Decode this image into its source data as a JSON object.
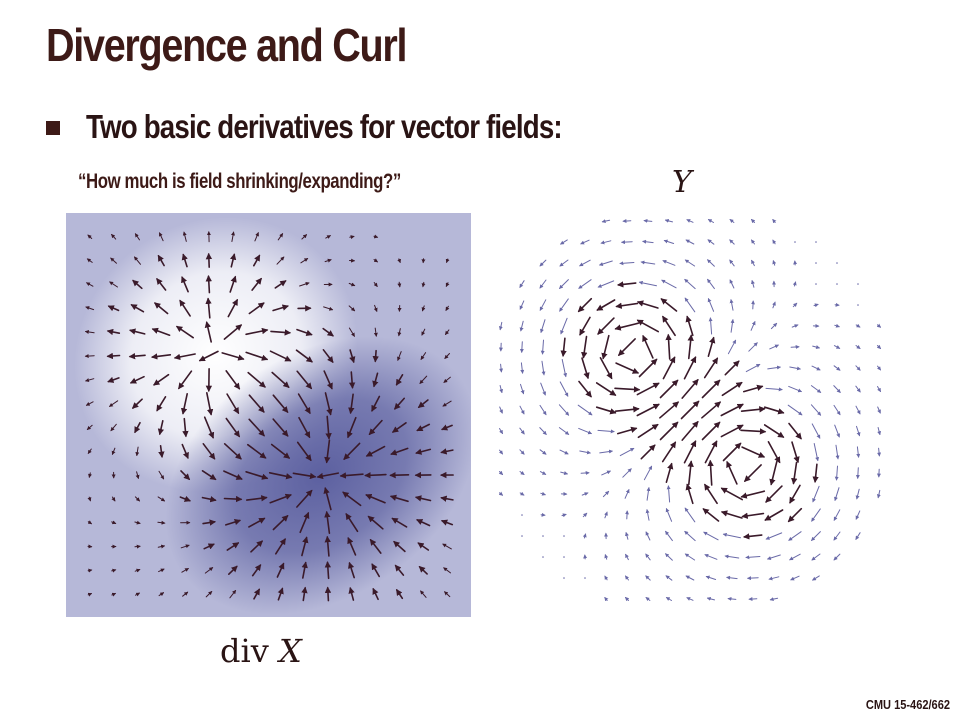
{
  "slide": {
    "title": "Divergence and Curl",
    "bullet": "Two basic derivatives for vector fields:",
    "question": "“How much is field shrinking/expanding?”",
    "curl_field_label": "Y",
    "div_label_op": "div",
    "div_label_var": "X",
    "footer": "CMU 15-462/662"
  },
  "colors": {
    "title": "#3d1a17",
    "arrow_dark": "#3a1a2a",
    "arrow_light": "#6a6aa8",
    "heat_low": "#ffffff",
    "heat_mid": "#b6b8d8",
    "heat_high": "#5c60a0"
  }
}
